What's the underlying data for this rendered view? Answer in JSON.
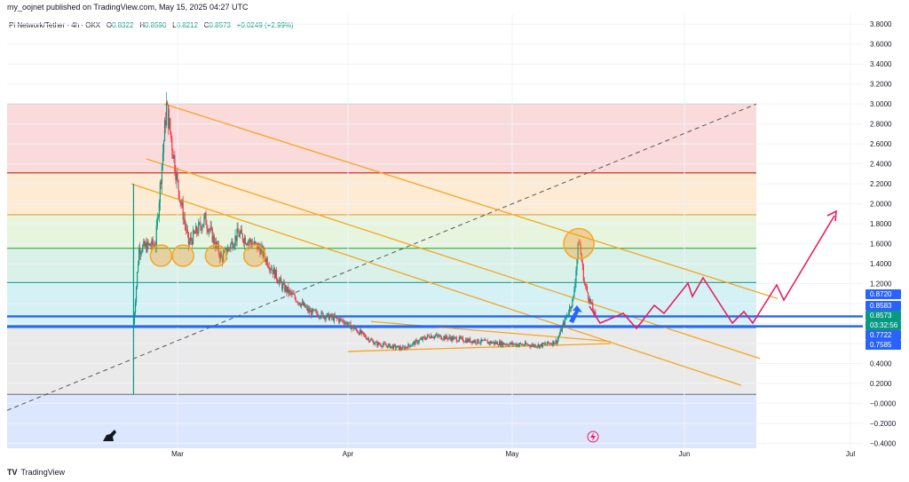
{
  "header": {
    "published": "my_oojnet published on TradingView.com, May 15, 2025 04:27 UTC"
  },
  "legend": {
    "symbol": "Pi Network/Tether · 4h · OKX",
    "open_label": "O",
    "open": "0.8322",
    "high_label": "H",
    "high": "0.8590",
    "low_label": "L",
    "low": "0.8212",
    "close_label": "C",
    "close": "0.8573",
    "change": "+0.0249 (+2.99%)"
  },
  "brand": {
    "name": "TradingView",
    "logo_text": "TV"
  },
  "colors": {
    "up": "#089981",
    "down": "#f23645",
    "trendline": "#f5a623",
    "support": "#2962ff",
    "projection": "#e91e63"
  },
  "chart_data": {
    "type": "candlestick",
    "symbol": "Pi Network/Tether",
    "timeframe": "4h",
    "exchange": "OKX",
    "y_axis_ticks": [
      "3.8000",
      "3.6000",
      "3.4000",
      "3.2000",
      "3.0000",
      "2.8000",
      "2.6000",
      "2.4000",
      "2.2000",
      "2.0000",
      "1.8000",
      "1.6000",
      "1.4000",
      "1.2000",
      "1.0000",
      "0.8000",
      "0.6000",
      "0.4000",
      "0.2000",
      "−0.0000",
      "−0.2000",
      "−0.4000"
    ],
    "y_tick_values": [
      3.8,
      3.6,
      3.4,
      3.2,
      3.0,
      2.8,
      2.6,
      2.4,
      2.2,
      2.0,
      1.8,
      1.6,
      1.4,
      1.2,
      1.0,
      0.8,
      0.6,
      0.4,
      0.2,
      0,
      -0.2,
      -0.4
    ],
    "x_axis_ticks": [
      "Mar",
      "Apr",
      "May",
      "Jun",
      "Jul"
    ],
    "ylim": [
      -0.45,
      3.9
    ],
    "price_labels": [
      {
        "text": "0.8720",
        "value": 0.872,
        "color": "#2962ff"
      },
      {
        "text": "0.8583",
        "value": 0.8583,
        "color": "#2962ff"
      },
      {
        "text": "0.8573",
        "value": 0.8573,
        "color": "#089981"
      },
      {
        "text": "03:32:56",
        "value": 0.82,
        "color": "#089981"
      },
      {
        "text": "0.7722",
        "value": 0.7722,
        "color": "#2962ff"
      },
      {
        "text": "0.7585",
        "value": 0.7585,
        "color": "#2962ff"
      }
    ],
    "fib_levels": [
      3.0,
      2.31,
      1.89,
      1.555,
      1.21,
      0.76,
      0.09
    ],
    "fib_zone_colors": [
      "#f9d3d3",
      "#fde8cc",
      "#e3f3d8",
      "#d3efe5",
      "#cceff3",
      "#e6e6e6",
      "#d6e2fc"
    ],
    "fib_line_colors": [
      "#787b86",
      "#c0392b",
      "#e6a23c",
      "#4caf50",
      "#26a69a",
      "#2196f3",
      "#787b86"
    ],
    "support_lines": [
      0.872,
      0.772
    ],
    "highlight_circles": [
      {
        "date": "Feb 25",
        "price": 1.48
      },
      {
        "date": "Mar 1",
        "price": 1.48
      },
      {
        "date": "Mar 7",
        "price": 1.48
      },
      {
        "date": "Mar 14",
        "price": 1.48
      },
      {
        "date": "May 12",
        "price": 1.6
      }
    ],
    "price_series_approx": [
      {
        "date": "Feb 20",
        "price": 0.8
      },
      {
        "date": "Feb 21",
        "price": 1.55
      },
      {
        "date": "Feb 24",
        "price": 1.6
      },
      {
        "date": "Feb 26",
        "price": 2.98
      },
      {
        "date": "Feb 28",
        "price": 2.2
      },
      {
        "date": "Mar 2",
        "price": 1.6
      },
      {
        "date": "Mar 5",
        "price": 1.85
      },
      {
        "date": "Mar 8",
        "price": 1.45
      },
      {
        "date": "Mar 11",
        "price": 1.7
      },
      {
        "date": "Mar 15",
        "price": 1.55
      },
      {
        "date": "Mar 19",
        "price": 1.18
      },
      {
        "date": "Mar 24",
        "price": 0.92
      },
      {
        "date": "Mar 30",
        "price": 0.83
      },
      {
        "date": "Apr 5",
        "price": 0.6
      },
      {
        "date": "Apr 10",
        "price": 0.55
      },
      {
        "date": "Apr 15",
        "price": 0.68
      },
      {
        "date": "Apr 22",
        "price": 0.63
      },
      {
        "date": "Apr 28",
        "price": 0.6
      },
      {
        "date": "May 5",
        "price": 0.58
      },
      {
        "date": "May 8",
        "price": 0.62
      },
      {
        "date": "May 11",
        "price": 1.05
      },
      {
        "date": "May 12",
        "price": 1.65
      },
      {
        "date": "May 13",
        "price": 1.2
      },
      {
        "date": "May 15",
        "price": 0.857
      }
    ]
  }
}
